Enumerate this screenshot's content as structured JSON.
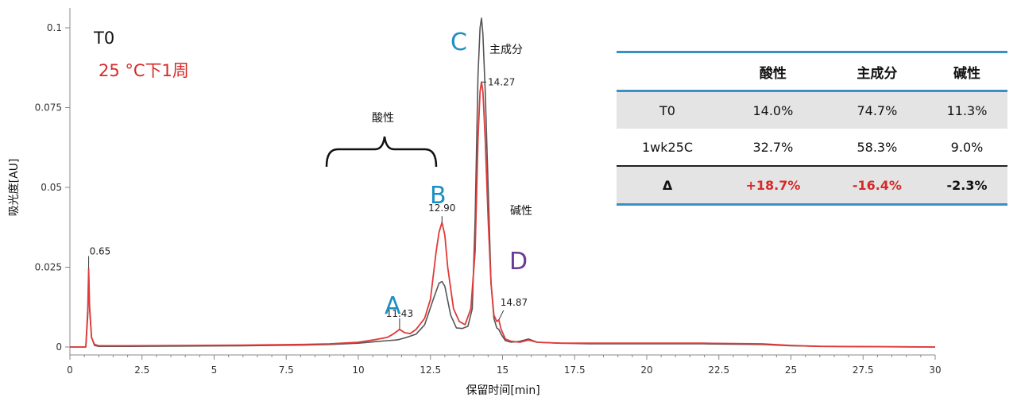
{
  "chart_data": {
    "type": "line",
    "title": "",
    "xlabel": "保留时间[min]",
    "ylabel": "吸光度[AU]",
    "xlim": [
      0,
      30
    ],
    "ylim": [
      -0.002,
      0.104
    ],
    "xticks": [
      0,
      2.5,
      5,
      7.5,
      10,
      12.5,
      15,
      17.5,
      20,
      22.5,
      25,
      27.5,
      30
    ],
    "xtick_labels": [
      "0",
      "2.5",
      "5",
      "7.5",
      "10",
      "12.5",
      "15",
      "17.5",
      "20",
      "22.5",
      "25",
      "27.5",
      "30"
    ],
    "yticks": [
      0,
      0.025,
      0.05,
      0.075,
      0.1
    ],
    "ytick_labels": [
      "0",
      "0.025",
      "0.05",
      "0.075",
      "0.1"
    ],
    "grid": false,
    "series": [
      {
        "name": "T0",
        "color": "#555555",
        "x": [
          0,
          0.55,
          0.62,
          0.65,
          0.68,
          0.75,
          0.85,
          1.0,
          2,
          4,
          6,
          8,
          9,
          10,
          10.5,
          11,
          11.3,
          11.43,
          11.6,
          12,
          12.3,
          12.6,
          12.8,
          12.9,
          13.0,
          13.2,
          13.4,
          13.6,
          13.8,
          13.95,
          14.05,
          14.15,
          14.22,
          14.27,
          14.32,
          14.4,
          14.5,
          14.6,
          14.7,
          14.8,
          14.87,
          14.95,
          15.1,
          15.3,
          15.6,
          15.9,
          16.2,
          17,
          18,
          20,
          22,
          24,
          25,
          26,
          28,
          30
        ],
        "y": [
          0,
          0,
          0.01,
          0.023,
          0.012,
          0.003,
          0.0005,
          0.0002,
          0.0002,
          0.0003,
          0.0004,
          0.0006,
          0.0008,
          0.0012,
          0.0016,
          0.002,
          0.0022,
          0.0024,
          0.0028,
          0.004,
          0.007,
          0.015,
          0.02,
          0.0205,
          0.019,
          0.01,
          0.006,
          0.0058,
          0.0065,
          0.012,
          0.04,
          0.085,
          0.1,
          0.103,
          0.098,
          0.08,
          0.05,
          0.02,
          0.009,
          0.006,
          0.0055,
          0.004,
          0.002,
          0.0015,
          0.0018,
          0.0025,
          0.0015,
          0.0012,
          0.001,
          0.001,
          0.001,
          0.0008,
          0.0004,
          0.0002,
          0.0001,
          0
        ]
      },
      {
        "name": "25 °C下1周",
        "color": "#e03a3a",
        "x": [
          0,
          0.55,
          0.62,
          0.65,
          0.68,
          0.75,
          0.85,
          1.0,
          2,
          4,
          6,
          8,
          9,
          10,
          10.5,
          11,
          11.2,
          11.43,
          11.6,
          11.8,
          12,
          12.3,
          12.5,
          12.7,
          12.8,
          12.9,
          13.0,
          13.1,
          13.3,
          13.5,
          13.7,
          13.9,
          14.05,
          14.15,
          14.22,
          14.27,
          14.32,
          14.4,
          14.5,
          14.6,
          14.7,
          14.8,
          14.87,
          14.95,
          15.1,
          15.3,
          15.6,
          15.9,
          16.2,
          17,
          18,
          20,
          22,
          24,
          25,
          26,
          28,
          30
        ],
        "y": [
          0,
          0,
          0.012,
          0.0245,
          0.013,
          0.003,
          0.0008,
          0.0004,
          0.0004,
          0.0005,
          0.0006,
          0.0008,
          0.001,
          0.0015,
          0.0022,
          0.003,
          0.004,
          0.0055,
          0.0045,
          0.0042,
          0.0055,
          0.009,
          0.015,
          0.03,
          0.036,
          0.039,
          0.035,
          0.025,
          0.012,
          0.008,
          0.007,
          0.012,
          0.03,
          0.065,
          0.08,
          0.083,
          0.08,
          0.065,
          0.04,
          0.02,
          0.01,
          0.008,
          0.0085,
          0.0055,
          0.0025,
          0.0018,
          0.0015,
          0.0022,
          0.0015,
          0.0012,
          0.0012,
          0.0012,
          0.0012,
          0.001,
          0.0005,
          0.0002,
          0.0001,
          0
        ]
      }
    ],
    "peak_labels": [
      {
        "x": 0.65,
        "y": 0.0245,
        "label": "0.65"
      },
      {
        "x": 11.43,
        "y": 0.0055,
        "label": "11.43"
      },
      {
        "x": 12.9,
        "y": 0.039,
        "label": "12.90"
      },
      {
        "x": 14.27,
        "y": 0.083,
        "label": "14.27"
      },
      {
        "x": 14.87,
        "y": 0.0085,
        "label": "14.87"
      }
    ],
    "peak_letters": [
      {
        "letter": "A",
        "color": "#1b8ec2"
      },
      {
        "letter": "B",
        "color": "#1b8ec2"
      },
      {
        "letter": "C",
        "color": "#1b8ec2"
      },
      {
        "letter": "D",
        "color": "#6a3a96"
      }
    ],
    "region_labels": {
      "acidic": "酸性",
      "main": "主成分",
      "basic": "碱性"
    },
    "legend": {
      "placement": "top-left",
      "items": [
        {
          "text": "T0",
          "color": "#111111"
        },
        {
          "text": "25 °C下1周",
          "color": "#d62a2a"
        }
      ]
    }
  },
  "table": {
    "headers": [
      "",
      "酸性",
      "主成分",
      "碱性"
    ],
    "rows": [
      {
        "label": "T0",
        "values": [
          "14.0%",
          "74.7%",
          "11.3%"
        ]
      },
      {
        "label": "1wk25C",
        "values": [
          "32.7%",
          "58.3%",
          "9.0%"
        ]
      },
      {
        "label": "Δ",
        "values": [
          "+18.7%",
          "-16.4%",
          "-2.3%"
        ]
      }
    ]
  },
  "colors": {
    "accent_blue": "#3a8fc4",
    "delta_red": "#d62a2a"
  }
}
